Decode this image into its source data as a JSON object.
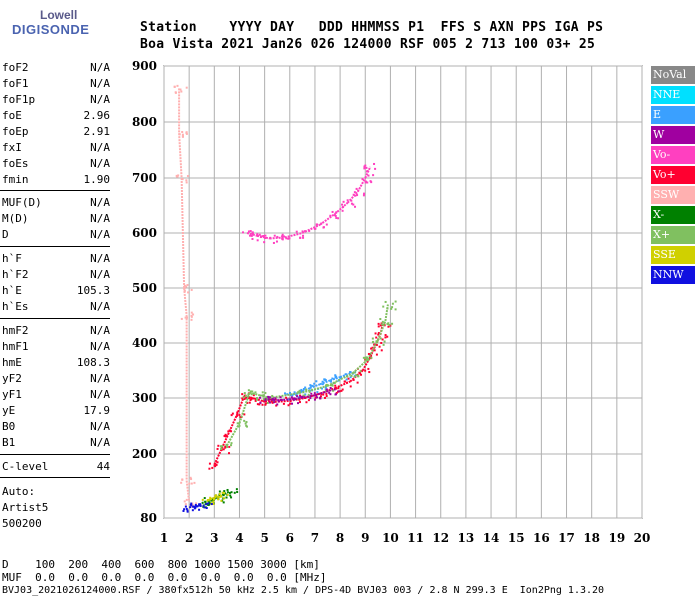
{
  "logo": {
    "line1": "Lowell",
    "line2": "DIGISONDE"
  },
  "header": {
    "line1": "Station    YYYY DAY   DDD HHMMSS P1  FFS S AXN PPS IGA PS",
    "line2": "Boa Vista 2021 Jan26 026 124000 RSF 005 2 713 100 03+ 25"
  },
  "params": {
    "group1": [
      {
        "name": "foF2",
        "value": "N/A"
      },
      {
        "name": "foF1",
        "value": "N/A"
      },
      {
        "name": "foF1p",
        "value": "N/A"
      },
      {
        "name": "foE",
        "value": "2.96"
      },
      {
        "name": "foEp",
        "value": "2.91"
      },
      {
        "name": "fxI",
        "value": "N/A"
      },
      {
        "name": "foEs",
        "value": "N/A"
      },
      {
        "name": "fmin",
        "value": "1.90"
      }
    ],
    "group2": [
      {
        "name": "MUF(D)",
        "value": "N/A"
      },
      {
        "name": "M(D)",
        "value": "N/A"
      },
      {
        "name": "D",
        "value": "N/A"
      }
    ],
    "group3": [
      {
        "name": "h`F",
        "value": "N/A"
      },
      {
        "name": "h`F2",
        "value": "N/A"
      },
      {
        "name": "h`E",
        "value": "105.3"
      },
      {
        "name": "h`Es",
        "value": "N/A"
      }
    ],
    "group4": [
      {
        "name": "hmF2",
        "value": "N/A"
      },
      {
        "name": "hmF1",
        "value": "N/A"
      },
      {
        "name": "hmE",
        "value": "108.3"
      },
      {
        "name": "yF2",
        "value": "N/A"
      },
      {
        "name": "yF1",
        "value": "N/A"
      },
      {
        "name": "yE",
        "value": "17.9"
      },
      {
        "name": "B0",
        "value": "N/A"
      },
      {
        "name": "B1",
        "value": "N/A"
      }
    ],
    "group5": [
      {
        "name": "C-level",
        "value": "44"
      }
    ]
  },
  "auto": {
    "line1": "Auto:",
    "line2": "Artist5",
    "line3": "500200"
  },
  "legend": [
    {
      "label": "NoVal",
      "color": "#888888"
    },
    {
      "label": "NNE",
      "color": "#00e0ff"
    },
    {
      "label": "E",
      "color": "#3aa0ff"
    },
    {
      "label": "W",
      "color": "#a000a0"
    },
    {
      "label": "Vo-",
      "color": "#ff40c0"
    },
    {
      "label": "Vo+",
      "color": "#ff0030"
    },
    {
      "label": "SSW",
      "color": "#ffb0b0"
    },
    {
      "label": "X-",
      "color": "#008000"
    },
    {
      "label": "X+",
      "color": "#80c060"
    },
    {
      "label": "SSE",
      "color": "#d0d000"
    },
    {
      "label": "NNW",
      "color": "#1010e0"
    }
  ],
  "chart_data": {
    "type": "scatter",
    "title": "",
    "xlabel": "",
    "ylabel": "",
    "xlim": [
      1,
      20
    ],
    "ylim": [
      80,
      900
    ],
    "x_ticks": [
      "1",
      "2",
      "3",
      "4",
      "5",
      "6",
      "7",
      "8",
      "9",
      "10",
      "11",
      "12",
      "13",
      "14",
      "15",
      "16",
      "17",
      "18",
      "19",
      "20"
    ],
    "y_ticks": [
      "80",
      "200",
      "300",
      "400",
      "500",
      "600",
      "700",
      "800",
      "900"
    ],
    "y_tick_values": [
      80,
      200,
      300,
      400,
      500,
      600,
      700,
      800,
      900
    ],
    "grid": true,
    "series": [
      {
        "name": "Vo+",
        "color": "#ff0030",
        "points": [
          [
            3.0,
            180
          ],
          [
            3.3,
            210
          ],
          [
            3.6,
            240
          ],
          [
            3.9,
            270
          ],
          [
            4.2,
            305
          ],
          [
            4.5,
            300
          ],
          [
            4.9,
            295
          ],
          [
            5.4,
            293
          ],
          [
            6.0,
            295
          ],
          [
            6.6,
            300
          ],
          [
            7.2,
            308
          ],
          [
            7.8,
            318
          ],
          [
            8.4,
            330
          ],
          [
            8.9,
            350
          ],
          [
            9.2,
            375
          ],
          [
            9.4,
            395
          ],
          [
            9.6,
            415
          ],
          [
            9.7,
            435
          ]
        ]
      },
      {
        "name": "E",
        "color": "#3aa0ff",
        "points": [
          [
            6.0,
            305
          ],
          [
            6.4,
            310
          ],
          [
            6.8,
            318
          ],
          [
            7.2,
            325
          ],
          [
            7.6,
            332
          ],
          [
            8.0,
            338
          ],
          [
            8.4,
            345
          ]
        ]
      },
      {
        "name": "X+",
        "color": "#80c060",
        "points": [
          [
            3.5,
            215
          ],
          [
            4.0,
            255
          ],
          [
            4.4,
            310
          ],
          [
            4.8,
            305
          ],
          [
            5.2,
            300
          ],
          [
            6.5,
            310
          ],
          [
            7.5,
            322
          ],
          [
            8.5,
            345
          ],
          [
            9.1,
            370
          ],
          [
            9.5,
            405
          ],
          [
            9.8,
            440
          ],
          [
            9.9,
            470
          ]
        ]
      },
      {
        "name": "W",
        "color": "#a000a0",
        "points": [
          [
            5.0,
            298
          ],
          [
            5.5,
            296
          ],
          [
            6.2,
            298
          ],
          [
            7.0,
            305
          ],
          [
            7.7,
            315
          ]
        ]
      },
      {
        "name": "Vo-",
        "color": "#ff40c0",
        "points": [
          [
            4.3,
            600
          ],
          [
            4.7,
            595
          ],
          [
            5.2,
            590
          ],
          [
            5.8,
            592
          ],
          [
            6.5,
            600
          ],
          [
            7.2,
            615
          ],
          [
            7.8,
            635
          ],
          [
            8.3,
            655
          ],
          [
            8.7,
            675
          ],
          [
            9.0,
            700
          ],
          [
            9.2,
            720
          ]
        ]
      },
      {
        "name": "X-",
        "color": "#008000",
        "points": [
          [
            2.5,
            108
          ],
          [
            2.8,
            112
          ],
          [
            3.1,
            118
          ],
          [
            3.4,
            125
          ],
          [
            3.6,
            130
          ]
        ]
      },
      {
        "name": "SSE",
        "color": "#d0d000",
        "points": [
          [
            2.7,
            112
          ],
          [
            3.0,
            118
          ],
          [
            3.3,
            122
          ]
        ]
      },
      {
        "name": "SSW",
        "color": "#ffb0b0",
        "points": [
          [
            1.6,
            860
          ],
          [
            1.6,
            780
          ],
          [
            1.7,
            700
          ],
          [
            1.8,
            500
          ],
          [
            1.9,
            450
          ],
          [
            1.9,
            150
          ],
          [
            2.0,
            110
          ]
        ]
      },
      {
        "name": "NNW",
        "color": "#1010e0",
        "points": [
          [
            2.0,
            100
          ],
          [
            2.3,
            102
          ],
          [
            2.6,
            103
          ]
        ]
      }
    ]
  },
  "footer": {
    "row1": "D    100  200  400  600  800 1000 1500 3000 [km]",
    "row2": "MUF  0.0  0.0  0.0  0.0  0.0  0.0  0.0  0.0 [MHz]",
    "row3": "BVJ03_2021026124000.RSF / 380fx512h 50 kHz 2.5 km / DPS-4D BVJ03 003 / 2.8 N 299.3 E  Ion2Png 1.3.20"
  }
}
